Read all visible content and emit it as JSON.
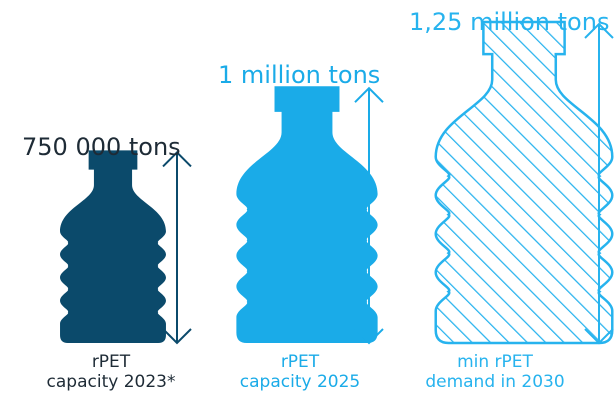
{
  "colors": {
    "dark": "#0b4a6b",
    "mid": "#1aabe8",
    "light": "#27b3ee",
    "text": "#1e2b36"
  },
  "chart_data": {
    "type": "bar",
    "categories": [
      "rPET capacity 2023*",
      "rPET capacity 2025",
      "min rPET demand in 2030"
    ],
    "values": [
      750000,
      1000000,
      1250000
    ],
    "unit": "tons",
    "value_labels": [
      "750 000 tons",
      "1 million tons",
      "1,25 million tons"
    ],
    "category_lines": [
      [
        "rPET",
        "capacity 2023*"
      ],
      [
        "rPET",
        "capacity 2025"
      ],
      [
        "min rPET",
        "demand in 2030"
      ]
    ],
    "styles": [
      "solid",
      "solid",
      "hatched"
    ],
    "icon": "bottle-icon",
    "title": "",
    "xlabel": "",
    "ylabel": ""
  }
}
